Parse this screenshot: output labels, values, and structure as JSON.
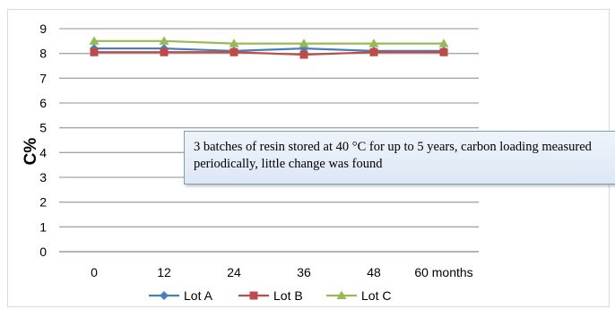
{
  "chart_data": {
    "type": "line",
    "categories": [
      "0",
      "12",
      "24",
      "36",
      "48",
      "60 months"
    ],
    "x": [
      0,
      12,
      24,
      36,
      48,
      60
    ],
    "series": [
      {
        "name": "Lot A",
        "values": [
          8.2,
          8.2,
          8.1,
          8.2,
          8.1,
          8.1
        ],
        "color": "#4a7ebb",
        "marker": "diamond"
      },
      {
        "name": "Lot B",
        "values": [
          8.05,
          8.05,
          8.05,
          7.95,
          8.05,
          8.05
        ],
        "color": "#be4b48",
        "marker": "square"
      },
      {
        "name": "Lot C",
        "values": [
          8.5,
          8.5,
          8.4,
          8.4,
          8.4,
          8.4
        ],
        "color": "#98b954",
        "marker": "triangle"
      }
    ],
    "title": "",
    "xlabel": "",
    "ylabel": "C%",
    "ylim": [
      0,
      9
    ],
    "yticks": [
      "0",
      "1",
      "2",
      "3",
      "4",
      "5",
      "6",
      "7",
      "8",
      "9"
    ],
    "grid": "horizontal",
    "legend_position": "bottom",
    "annotation": "3 batches of resin stored at 40 °C for up to 5 years, carbon loading measured periodically,  little  change was found"
  }
}
